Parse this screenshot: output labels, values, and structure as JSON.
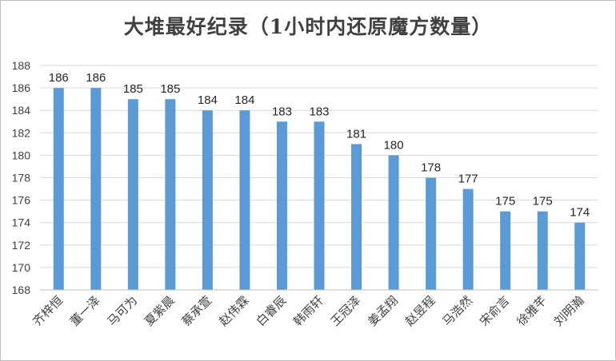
{
  "chart_data": {
    "type": "bar",
    "title": "大堆最好纪录（1小时内还原魔方数量）",
    "xlabel": "",
    "ylabel": "",
    "categories": [
      "齐梓恒",
      "董一泽",
      "马可为",
      "夏紫晨",
      "蔡承萱",
      "赵伟霖",
      "白睿辰",
      "韩雨轩",
      "王冠泽",
      "姜孟翔",
      "赵昱程",
      "马浩然",
      "宋俞言",
      "徐雅芊",
      "刘明瀚"
    ],
    "values": [
      186,
      186,
      185,
      185,
      184,
      184,
      183,
      183,
      181,
      180,
      178,
      177,
      175,
      175,
      174
    ],
    "ylim": [
      168,
      188
    ],
    "yticks": [
      168,
      170,
      172,
      174,
      176,
      178,
      180,
      182,
      184,
      186,
      188
    ],
    "grid": true,
    "legend": "none",
    "bar_color": "#5b9bd5",
    "grid_color": "#d9d9d9"
  }
}
